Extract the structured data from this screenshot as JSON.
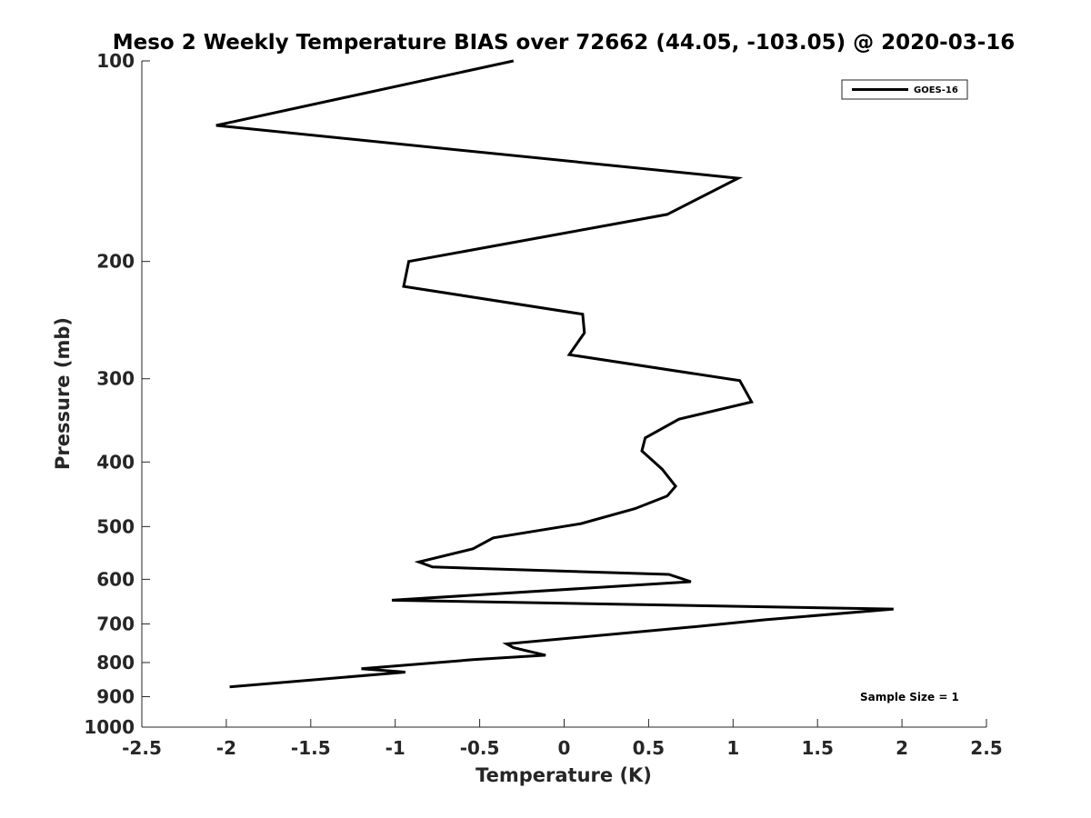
{
  "chart_data": {
    "type": "line",
    "title": "Meso 2 Weekly Temperature BIAS over 72662 (44.05, -103.05) @ 2020-03-16",
    "xlabel": "Temperature (K)",
    "ylabel": "Pressure (mb)",
    "xlim": [
      -2.5,
      2.5
    ],
    "ylim": [
      100,
      1000
    ],
    "y_scale": "log",
    "y_reversed": true,
    "x_ticks": [
      "-2.5",
      "-2",
      "-1.5",
      "-1",
      "-0.5",
      "0",
      "0.5",
      "1",
      "1.5",
      "2",
      "2.5"
    ],
    "y_ticks": [
      "100",
      "200",
      "300",
      "400",
      "500",
      "600",
      "700",
      "800",
      "900",
      "1000"
    ],
    "grid": false,
    "legend_position": "top-right",
    "annotation": "Sample Size = 1",
    "series": [
      {
        "name": "GOES-16",
        "color": "#000000",
        "x": [
          -0.3,
          -2.06,
          1.03,
          0.61,
          -0.92,
          -0.95,
          0.11,
          0.12,
          0.03,
          1.04,
          1.11,
          0.68,
          0.48,
          0.46,
          0.58,
          0.66,
          0.61,
          0.42,
          0.1,
          -0.42,
          -0.54,
          -0.86,
          -0.78,
          0.62,
          0.75,
          -1.02,
          1.95,
          1.19,
          0.77,
          -0.34,
          -0.3,
          -0.11,
          -0.54,
          -1.2,
          -0.94,
          -1.98
        ],
        "y": [
          100,
          125,
          150,
          170,
          200,
          218,
          240,
          256,
          276,
          302,
          325,
          345,
          368,
          385,
          410,
          435,
          450,
          470,
          495,
          520,
          540,
          565,
          575,
          590,
          605,
          645,
          665,
          690,
          707,
          750,
          760,
          780,
          792,
          817,
          827,
          870
        ]
      }
    ]
  }
}
